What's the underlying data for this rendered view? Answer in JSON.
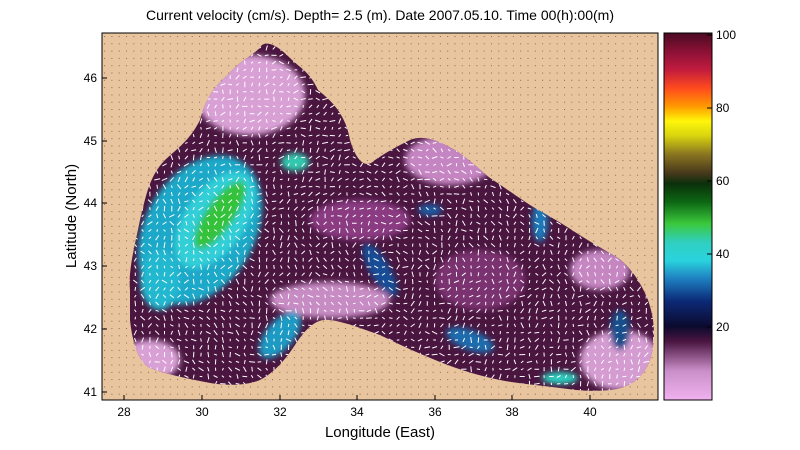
{
  "title": "Current velocity (cm/s). Depth=  2.5 (m). Date 2007.05.10. Time 00(h):00(m)",
  "xlabel": "Longitude (East)",
  "ylabel": "Latitude (North)",
  "x_ticks": [
    "28",
    "30",
    "32",
    "34",
    "36",
    "38",
    "40"
  ],
  "y_ticks": [
    "41",
    "42",
    "43",
    "44",
    "45",
    "46"
  ],
  "colorbar": {
    "ticks": [
      "20",
      "40",
      "60",
      "80",
      "100"
    ],
    "range": [
      0,
      100
    ]
  },
  "colors": {
    "land": "#e8c49f",
    "sea_low": "#e8a6e6",
    "sea_mid": "#3a0f2e",
    "jet_cyan": "#2fd0d8",
    "jet_green": "#3cc23a",
    "arrows": "#ffffff",
    "grid_dots": "#8a6a4d"
  },
  "chart_data": {
    "type": "heatmap",
    "title": "Current velocity (cm/s). Depth=  2.5 (m). Date 2007.05.10. Time 00(h):00(m)",
    "xlabel": "Longitude (East)",
    "ylabel": "Latitude (North)",
    "xlim": [
      27.4,
      41.8
    ],
    "ylim": [
      40.9,
      46.7
    ],
    "value_range": [
      0,
      100
    ],
    "grid": "dotted"
  }
}
